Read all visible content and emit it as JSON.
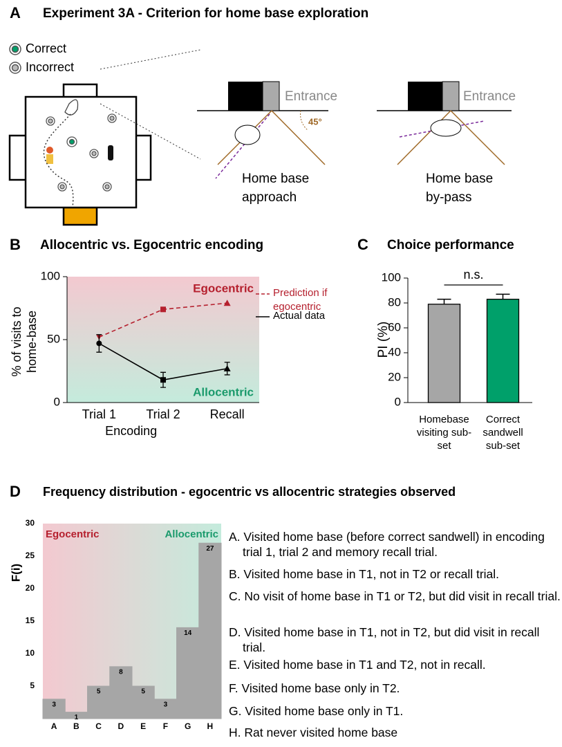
{
  "panel_a": {
    "label": "A",
    "title": "Experiment 3A - Criterion for home base exploration",
    "legend": [
      "Correct",
      "Incorrect"
    ],
    "entrance_labels": [
      "Entrance",
      "Entrance"
    ],
    "angle_label": "45°",
    "captions": [
      "Home base approach",
      "Home base by-pass"
    ]
  },
  "chart_data": [
    {
      "type": "line",
      "panel_label": "B",
      "title": "Allocentric vs. Egocentric encoding",
      "y_label": "% of visits to home-base",
      "x_label": "Encoding",
      "categories": [
        "Trial 1",
        "Trial 2",
        "Recall"
      ],
      "series": [
        {
          "name": "Prediction if egocentric",
          "color": "#b5202e",
          "dashed": true,
          "values": [
            52,
            74,
            79
          ]
        },
        {
          "name": "Actual data",
          "color": "#000000",
          "values": [
            47,
            18,
            27
          ],
          "errors": [
            7,
            6,
            5
          ]
        }
      ],
      "ylim": [
        0,
        100
      ],
      "yticks": [
        0,
        50,
        100
      ],
      "annotations": [
        {
          "text": "Egocentric",
          "color": "#b5202e"
        },
        {
          "text": "Allocentric",
          "color": "#1a9a6c"
        }
      ]
    },
    {
      "type": "bar",
      "panel_label": "C",
      "title": "Choice performance",
      "y_label": "PI (%)",
      "categories": [
        "Homebase visiting sub-set",
        "Correct sandwell sub-set"
      ],
      "values": [
        79,
        83
      ],
      "errors": [
        4,
        4
      ],
      "colors": [
        "#a6a6a6",
        "#00a06a"
      ],
      "ylim": [
        0,
        100
      ],
      "yticks": [
        0,
        20,
        40,
        60,
        80,
        100
      ],
      "annotation": "n.s."
    },
    {
      "type": "bar",
      "panel_label": "D",
      "title": "Frequency distribution - egocentric vs allocentric strategies observed",
      "y_label": "F(i)",
      "categories": [
        "A",
        "B",
        "C",
        "D",
        "E",
        "F",
        "G",
        "H"
      ],
      "values": [
        3,
        1,
        5,
        8,
        5,
        3,
        14,
        27
      ],
      "color": "#a6a6a6",
      "ylim": [
        0,
        30
      ],
      "yticks": [
        5,
        10,
        15,
        20,
        25,
        30
      ],
      "annotations": [
        {
          "text": "Egocentric",
          "color": "#b5202e"
        },
        {
          "text": "Allocentric",
          "color": "#1a9a6c"
        }
      ],
      "descriptions": [
        "A. Visited home base (before correct sandwell) in encoding trial 1, trial 2 and memory recall trial.",
        "B. Visited home base in T1, not in T2 or recall trial.",
        "C. No visit of home base in T1 or T2, but did visit in recall trial.",
        "D. Visited home base in T1, not in T2, but did visit in recall trial.",
        "E. Visited home base in T1 and T2, not in recall.",
        "F.  Visited home base only in T2.",
        "G. Visited home base only in T1.",
        "H. Rat never visited home base"
      ]
    }
  ]
}
